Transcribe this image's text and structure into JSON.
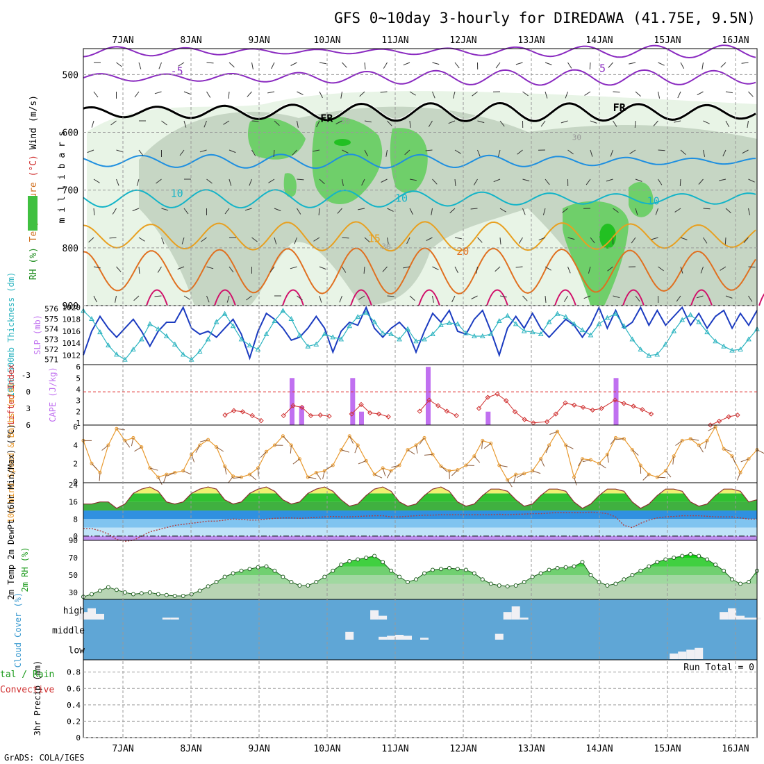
{
  "header": {
    "title": "GFS 0~10day 3-hourly for DIREDAWA (41.75E, 9.5N)",
    "credit": "GrADS: COLA/IGES"
  },
  "dates": [
    "7JAN",
    "8JAN",
    "9JAN",
    "10JAN",
    "11JAN",
    "12JAN",
    "13JAN",
    "14JAN",
    "15JAN",
    "16JAN"
  ],
  "colors": {
    "rh_light": "#e8f4e6",
    "rh_mid": "#c6d6c4",
    "rh_high": "#6fcf6a",
    "temp_neg5": "#8a2ac0",
    "temp_fr": "#000000",
    "temp_5": "#1e8fe0",
    "temp_10": "#13b4c8",
    "temp_15": "#e8a020",
    "temp_20": "#e07020",
    "temp_25": "#d0106a",
    "slp": "#1c3cc0",
    "thickness": "#2cb4c0",
    "cape": "#c070f0",
    "lifted": "#d03030",
    "wind": "#e89a30",
    "rh2m": "#30c030",
    "cloud_bg": "#5fa6d6",
    "cloud_fill": "#f0f0f4"
  },
  "chart_data": [
    {
      "id": "upper_air",
      "type": "heatmap",
      "ylabel": "millibars",
      "side_labels": [
        "RH (%)",
        "Temperature",
        "(°C)",
        "Wind (m/s)"
      ],
      "yticks": [
        500,
        600,
        700,
        800,
        900
      ],
      "ylim": [
        455,
        900
      ],
      "isotherm_labels": [
        {
          "text": "-5",
          "day": 0.7,
          "p": 500,
          "series": "temp_neg5"
        },
        {
          "text": "5",
          "day": 7.0,
          "p": 495,
          "series": "temp_neg5"
        },
        {
          "text": "FR",
          "day": 2.9,
          "p": 582,
          "series": "temp_fr"
        },
        {
          "text": "FR",
          "day": 7.2,
          "p": 563,
          "series": "temp_fr"
        },
        {
          "text": "10",
          "day": 0.7,
          "p": 712,
          "series": "temp_10"
        },
        {
          "text": "10",
          "day": 4.0,
          "p": 720,
          "series": "temp_10"
        },
        {
          "text": "10",
          "day": 7.7,
          "p": 725,
          "series": "temp_10"
        },
        {
          "text": "15",
          "day": 3.6,
          "p": 790,
          "series": "temp_15"
        },
        {
          "text": "20",
          "day": 4.9,
          "p": 812,
          "series": "temp_20"
        },
        {
          "text": "30",
          "day": 3.2,
          "p": 585,
          "series": "rh"
        },
        {
          "text": "30",
          "day": 6.6,
          "p": 613,
          "series": "rh"
        },
        {
          "text": "30",
          "day": 3.8,
          "p": 802,
          "series": "rh"
        }
      ]
    },
    {
      "id": "slp_thickness",
      "type": "line",
      "ylabel_left": "1000-500mb Thickness (dm)",
      "ylabel_right": "SLP (mb)",
      "yticks_left": [
        576,
        575,
        574,
        573,
        572,
        571
      ],
      "yticks_right": [
        1020,
        1018,
        1016,
        1014,
        1012
      ],
      "ylim_left": [
        570.5,
        576.3
      ],
      "ylim_right": [
        1010.4,
        1020.3
      ],
      "series": [
        {
          "name": "SLP",
          "values": [
            1012.0,
            1016.0,
            1018.5,
            1016.5,
            1015.0,
            1016.5,
            1018.0,
            1016.0,
            1013.5,
            1016.0,
            1017.5,
            1017.5,
            1020.0,
            1016.5,
            1015.5,
            1016.0,
            1015.0,
            1016.5,
            1018.0,
            1015.5,
            1011.5,
            1016.0,
            1019.0,
            1018.0,
            1016.5,
            1014.5,
            1015.0,
            1016.5,
            1018.5,
            1016.5,
            1012.5,
            1016.0,
            1017.5,
            1017.0,
            1020.0,
            1016.5,
            1015.0,
            1016.5,
            1017.5,
            1016.0,
            1012.5,
            1016.0,
            1019.0,
            1017.5,
            1019.5,
            1016.0,
            1015.5,
            1018.0,
            1019.5,
            1016.0,
            1012.0,
            1016.5,
            1018.5,
            1016.5,
            1019.0,
            1016.5,
            1015.0,
            1016.5,
            1018.0,
            1017.0,
            1015.0,
            1017.0,
            1020.0,
            1016.5,
            1019.5,
            1016.5,
            1017.5,
            1020.0,
            1017.0,
            1019.5,
            1017.0,
            1018.5,
            1020.0,
            1017.0,
            1019.0,
            1016.5,
            1018.5,
            1019.5,
            1016.5,
            1019.0,
            1017.0,
            1019.5
          ]
        },
        {
          "name": "Thickness",
          "values": [
            575.8,
            575.0,
            573.7,
            572.4,
            571.5,
            571.0,
            572.0,
            573.0,
            574.5,
            574.0,
            573.3,
            572.5,
            571.5,
            571.0,
            571.8,
            573.0,
            574.7,
            575.5,
            574.3,
            573.0,
            572.4,
            572.0,
            573.5,
            574.8,
            575.8,
            575.0,
            573.4,
            572.3,
            572.5,
            573.5,
            573.2,
            573.0,
            574.3,
            575.2,
            575.6,
            574.7,
            573.6,
            573.5,
            573.0,
            574.0,
            572.8,
            573.0,
            573.5,
            574.4,
            574.6,
            574.5,
            573.6,
            573.3,
            573.3,
            573.5,
            574.8,
            575.3,
            574.5,
            573.8,
            573.7,
            573.5,
            574.7,
            575.5,
            575.2,
            574.5,
            573.9,
            573.4,
            574.5,
            575.1,
            575.5,
            574.3,
            573.0,
            572.0,
            571.4,
            571.5,
            572.5,
            573.8,
            574.9,
            575.4,
            574.7,
            573.7,
            572.8,
            572.3,
            571.9,
            572.0,
            573.0,
            574.0
          ]
        }
      ]
    },
    {
      "id": "cape_li",
      "type": "bar",
      "ylabel_left": "Lifted Index",
      "ylabel_right": "CAPE (J/kg)",
      "yticks_left": [
        "-3",
        "0",
        "3",
        "6"
      ],
      "yticks_right": [
        "6",
        "5",
        "4",
        "3",
        "2",
        "1"
      ],
      "cape_ylim": [
        0.8,
        6.2
      ],
      "li_ylim": [
        -4.9,
        6.0
      ],
      "cape_bars": [
        {
          "day": 2.48,
          "value": 5.0
        },
        {
          "day": 2.62,
          "value": 2.5
        },
        {
          "day": 2.62,
          "value": 2.0
        },
        {
          "day": 3.37,
          "value": 5.0
        },
        {
          "day": 3.5,
          "value": 2.0
        },
        {
          "day": 4.48,
          "value": 6.0
        },
        {
          "day": 5.36,
          "value": 2.0
        },
        {
          "day": 7.24,
          "value": 5.0
        }
      ],
      "lifted_index": [
        {
          "day": 1.5,
          "value": 4.2
        },
        {
          "day": 1.63,
          "value": 3.4
        },
        {
          "day": 1.76,
          "value": 3.6
        },
        {
          "day": 1.9,
          "value": 4.3
        },
        {
          "day": 2.03,
          "value": 5.2
        },
        {
          "day": 2.36,
          "value": 4.3
        },
        {
          "day": 2.5,
          "value": 2.5
        },
        {
          "day": 2.63,
          "value": 2.8
        },
        {
          "day": 2.76,
          "value": 4.3
        },
        {
          "day": 2.9,
          "value": 4.2
        },
        {
          "day": 3.03,
          "value": 4.4
        },
        {
          "day": 3.36,
          "value": 4.0
        },
        {
          "day": 3.5,
          "value": 2.3
        },
        {
          "day": 3.63,
          "value": 3.8
        },
        {
          "day": 3.76,
          "value": 4.0
        },
        {
          "day": 3.9,
          "value": 4.5
        },
        {
          "day": 4.36,
          "value": 3.5
        },
        {
          "day": 4.5,
          "value": 1.5
        },
        {
          "day": 4.63,
          "value": 2.5
        },
        {
          "day": 4.76,
          "value": 3.5
        },
        {
          "day": 4.9,
          "value": 4.3
        },
        {
          "day": 5.23,
          "value": 3.0
        },
        {
          "day": 5.36,
          "value": 1.0
        },
        {
          "day": 5.5,
          "value": 0.4
        },
        {
          "day": 5.63,
          "value": 1.6
        },
        {
          "day": 5.76,
          "value": 3.6
        },
        {
          "day": 5.9,
          "value": 5.0
        },
        {
          "day": 6.03,
          "value": 5.6
        },
        {
          "day": 6.23,
          "value": 5.4
        },
        {
          "day": 6.36,
          "value": 4.0
        },
        {
          "day": 6.5,
          "value": 2.0
        },
        {
          "day": 6.63,
          "value": 2.4
        },
        {
          "day": 6.76,
          "value": 2.8
        },
        {
          "day": 6.9,
          "value": 3.3
        },
        {
          "day": 7.03,
          "value": 3.0
        },
        {
          "day": 7.23,
          "value": 1.5
        },
        {
          "day": 7.36,
          "value": 2.1
        },
        {
          "day": 7.5,
          "value": 2.6
        },
        {
          "day": 7.63,
          "value": 3.2
        },
        {
          "day": 7.76,
          "value": 4.0
        },
        {
          "day": 8.63,
          "value": 6.0
        },
        {
          "day": 8.76,
          "value": 5.3
        },
        {
          "day": 8.9,
          "value": 4.5
        },
        {
          "day": 9.03,
          "value": 4.2
        }
      ]
    },
    {
      "id": "wind10m",
      "type": "line",
      "ylabel": "10m Wind Speed & Barbs (m/s)",
      "yticks": [
        0,
        2,
        4,
        6
      ],
      "ylim": [
        -0.1,
        6.2
      ],
      "values": [
        4.5,
        2.0,
        1.0,
        4.0,
        5.8,
        4.5,
        4.8,
        3.8,
        1.5,
        0.5,
        0.8,
        1.0,
        1.2,
        3.0,
        4.0,
        4.6,
        3.8,
        1.7,
        0.6,
        0.5,
        0.8,
        1.5,
        3.3,
        4.0,
        5.0,
        4.0,
        2.5,
        0.5,
        1.0,
        1.2,
        1.8,
        3.5,
        5.0,
        4.0,
        2.3,
        0.8,
        1.5,
        1.2,
        1.8,
        3.5,
        4.0,
        4.8,
        3.0,
        1.7,
        1.2,
        1.3,
        1.8,
        2.8,
        4.5,
        4.2,
        1.8,
        0.2,
        0.8,
        0.9,
        1.2,
        2.5,
        4.0,
        5.5,
        4.0,
        0.5,
        2.5,
        2.4,
        2.0,
        3.0,
        4.8,
        4.7,
        3.5,
        1.8,
        0.8,
        0.5,
        1.2,
        2.8,
        4.5,
        4.7,
        4.0,
        4.5,
        6.0,
        3.6,
        2.8,
        1.0,
        2.5,
        3.5
      ]
    },
    {
      "id": "temp2m",
      "type": "area",
      "ylabel": "2m Temp 2m DewPt (6hr Min/Max) (°C)",
      "yticks": [
        0,
        8,
        16,
        24
      ],
      "ylim": [
        -2,
        25
      ],
      "temperature": [
        15.0,
        15.0,
        16.0,
        16.0,
        13.0,
        15.0,
        20.0,
        22.0,
        23.0,
        21.0,
        16.0,
        15.0,
        16.0,
        20.0,
        22.0,
        23.0,
        22.0,
        17.0,
        15.0,
        16.0,
        20.0,
        22.0,
        23.0,
        21.0,
        17.0,
        15.0,
        16.0,
        20.0,
        22.0,
        23.0,
        21.0,
        17.0,
        14.0,
        15.0,
        19.0,
        22.0,
        23.0,
        21.0,
        16.0,
        14.0,
        15.0,
        19.0,
        22.0,
        23.0,
        21.0,
        16.0,
        14.0,
        15.0,
        19.0,
        22.0,
        22.0,
        21.0,
        17.0,
        14.0,
        15.0,
        19.0,
        22.0,
        22.0,
        21.0,
        16.0,
        13.0,
        15.0,
        19.0,
        22.0,
        22.0,
        21.0,
        16.0,
        13.0,
        15.0,
        19.0,
        22.0,
        22.0,
        21.0,
        16.0,
        14.0,
        15.0,
        19.0,
        22.0,
        22.0,
        21.0,
        16.0,
        17.0
      ],
      "dewpoint": [
        3.5,
        3.5,
        2.5,
        1.0,
        -1.5,
        -2.5,
        -2.0,
        0.0,
        2.0,
        3.0,
        4.0,
        5.0,
        5.5,
        6.0,
        6.5,
        7.0,
        7.0,
        7.5,
        8.0,
        7.8,
        7.5,
        7.5,
        8.0,
        8.3,
        8.5,
        8.5,
        8.3,
        8.5,
        8.8,
        9.0,
        9.2,
        9.0,
        9.0,
        9.2,
        9.4,
        9.5,
        9.5,
        9.0,
        9.0,
        9.3,
        9.5,
        9.8,
        9.8,
        10.0,
        10.0,
        10.0,
        10.0,
        10.0,
        10.0,
        10.0,
        10.2,
        10.0,
        10.2,
        10.3,
        10.5,
        10.5,
        10.8,
        11.0,
        11.0,
        11.0,
        11.0,
        11.2,
        11.0,
        10.5,
        9.0,
        5.0,
        4.0,
        6.0,
        7.5,
        8.5,
        9.0,
        9.2,
        9.5,
        9.5,
        9.5,
        9.3,
        9.0,
        9.0,
        9.0,
        8.5,
        8.0,
        8.0
      ]
    },
    {
      "id": "rh2m",
      "type": "area",
      "ylabel": "2m RH (%)",
      "yticks": [
        30,
        50,
        70,
        90
      ],
      "ylim": [
        22,
        90
      ],
      "values": [
        25,
        28,
        32,
        36,
        33,
        30,
        28,
        29,
        30,
        28,
        27,
        26,
        26,
        28,
        32,
        37,
        42,
        48,
        52,
        55,
        57,
        59,
        60,
        55,
        48,
        42,
        38,
        38,
        42,
        48,
        55,
        62,
        66,
        68,
        70,
        72,
        65,
        55,
        48,
        42,
        45,
        52,
        56,
        57,
        58,
        57,
        56,
        52,
        45,
        40,
        38,
        37,
        38,
        42,
        48,
        52,
        56,
        58,
        59,
        60,
        65,
        50,
        42,
        38,
        40,
        45,
        50,
        55,
        60,
        65,
        68,
        70,
        72,
        74,
        72,
        68,
        62,
        55,
        45,
        40,
        42,
        55
      ]
    },
    {
      "id": "cloud",
      "type": "heatmap",
      "ylabel": "Cloud Cover (%)",
      "levels": [
        "high",
        "middle",
        "low"
      ],
      "high_values": [
        40,
        60,
        30,
        0,
        0,
        0,
        0,
        0,
        0,
        0,
        10,
        10,
        0,
        0,
        0,
        0,
        0,
        0,
        0,
        0,
        0,
        0,
        0,
        0,
        0,
        0,
        0,
        0,
        0,
        0,
        0,
        0,
        0,
        0,
        0,
        50,
        20,
        0,
        0,
        0,
        0,
        0,
        0,
        0,
        0,
        0,
        0,
        0,
        0,
        0,
        0,
        40,
        70,
        10,
        0,
        0,
        0,
        0,
        0,
        0,
        0,
        0,
        0,
        0,
        0,
        0,
        0,
        0,
        0,
        0,
        0,
        0,
        0,
        0,
        0,
        0,
        0,
        40,
        60,
        20,
        10,
        10
      ],
      "middle_values": [
        0,
        0,
        0,
        0,
        0,
        0,
        0,
        0,
        0,
        0,
        0,
        0,
        0,
        0,
        0,
        0,
        0,
        0,
        0,
        0,
        0,
        0,
        0,
        0,
        0,
        0,
        0,
        0,
        0,
        0,
        0,
        0,
        40,
        0,
        0,
        0,
        15,
        20,
        25,
        20,
        0,
        10,
        0,
        0,
        0,
        0,
        0,
        0,
        0,
        0,
        30,
        0,
        0,
        0,
        0,
        0,
        0,
        0,
        0,
        0,
        0,
        0,
        0,
        0,
        0,
        0,
        0,
        0,
        0,
        0,
        0,
        0,
        0,
        0,
        0,
        0,
        0,
        0,
        0,
        0,
        0,
        0
      ],
      "low_values": [
        0,
        0,
        0,
        0,
        0,
        0,
        0,
        0,
        0,
        0,
        0,
        0,
        0,
        0,
        0,
        0,
        0,
        0,
        0,
        0,
        0,
        0,
        0,
        0,
        0,
        0,
        0,
        0,
        0,
        0,
        0,
        0,
        0,
        0,
        0,
        0,
        0,
        0,
        0,
        0,
        0,
        0,
        0,
        0,
        0,
        0,
        0,
        0,
        0,
        0,
        0,
        0,
        0,
        0,
        0,
        0,
        0,
        0,
        0,
        0,
        0,
        0,
        0,
        0,
        0,
        0,
        0,
        0,
        0,
        0,
        0,
        30,
        40,
        50,
        60,
        0,
        0,
        0,
        0,
        0,
        0,
        0
      ]
    },
    {
      "id": "precip",
      "type": "bar",
      "ylabel": "3hr Precip (mm)",
      "legend_left": [
        "tal / Rain",
        "Convective"
      ],
      "yticks": [
        "0",
        "0.2",
        "0.4",
        "0.6",
        "0.8"
      ],
      "ylim": [
        0,
        0.95
      ],
      "run_total": "Run Total = 0",
      "values": []
    }
  ]
}
